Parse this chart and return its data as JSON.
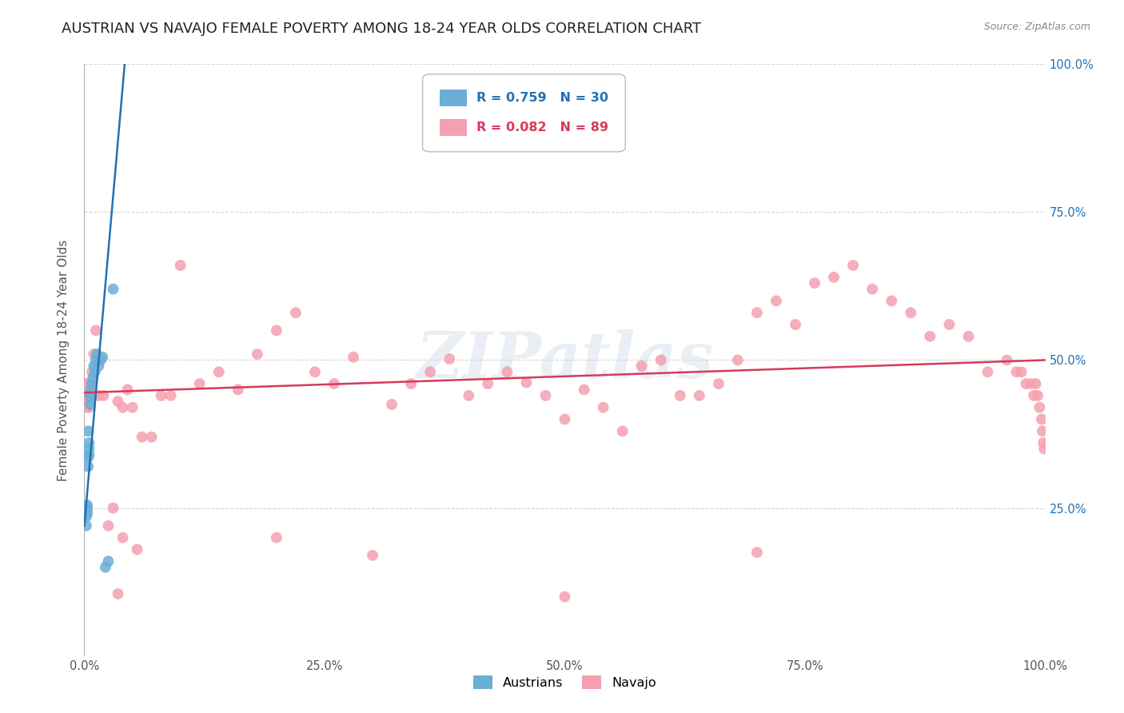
{
  "title": "AUSTRIAN VS NAVAJO FEMALE POVERTY AMONG 18-24 YEAR OLDS CORRELATION CHART",
  "source": "Source: ZipAtlas.com",
  "ylabel": "Female Poverty Among 18-24 Year Olds",
  "xlim": [
    0,
    1
  ],
  "ylim": [
    0,
    1
  ],
  "xtick_vals": [
    0.0,
    0.25,
    0.5,
    0.75,
    1.0
  ],
  "xticklabels": [
    "0.0%",
    "25.0%",
    "50.0%",
    "75.0%",
    "100.0%"
  ],
  "ytick_vals": [
    0.25,
    0.5,
    0.75,
    1.0
  ],
  "yticklabels": [
    "25.0%",
    "50.0%",
    "75.0%",
    "100.0%"
  ],
  "austrians_color": "#6baed6",
  "navajo_color": "#f4a0b0",
  "trendline_austrians_color": "#2171b5",
  "trendline_navajo_color": "#d63a5a",
  "watermark": "ZIPatlas",
  "legend_r_austrians": "R = 0.759",
  "legend_n_austrians": "N = 30",
  "legend_r_navajo": "R = 0.082",
  "legend_n_navajo": "N = 89",
  "background_color": "#ffffff",
  "grid_color": "#cccccc",
  "title_fontsize": 13,
  "axis_label_fontsize": 11,
  "tick_fontsize": 10.5,
  "marker_size": 100,
  "austrians_x": [
    0.001,
    0.002,
    0.002,
    0.002,
    0.003,
    0.003,
    0.003,
    0.003,
    0.004,
    0.004,
    0.004,
    0.005,
    0.005,
    0.005,
    0.006,
    0.006,
    0.007,
    0.007,
    0.008,
    0.009,
    0.01,
    0.011,
    0.012,
    0.013,
    0.015,
    0.017,
    0.019,
    0.022,
    0.025,
    0.03
  ],
  "austrians_y": [
    0.245,
    0.25,
    0.235,
    0.22,
    0.245,
    0.24,
    0.255,
    0.25,
    0.32,
    0.335,
    0.38,
    0.34,
    0.35,
    0.36,
    0.425,
    0.44,
    0.45,
    0.435,
    0.46,
    0.47,
    0.49,
    0.48,
    0.5,
    0.51,
    0.49,
    0.5,
    0.505,
    0.15,
    0.16,
    0.62
  ],
  "navajo_x": [
    0.001,
    0.001,
    0.002,
    0.002,
    0.002,
    0.003,
    0.003,
    0.003,
    0.004,
    0.005,
    0.006,
    0.007,
    0.008,
    0.01,
    0.012,
    0.015,
    0.02,
    0.025,
    0.03,
    0.035,
    0.04,
    0.045,
    0.05,
    0.06,
    0.07,
    0.08,
    0.09,
    0.1,
    0.12,
    0.14,
    0.16,
    0.18,
    0.2,
    0.22,
    0.24,
    0.26,
    0.28,
    0.3,
    0.32,
    0.34,
    0.36,
    0.38,
    0.4,
    0.42,
    0.44,
    0.46,
    0.48,
    0.5,
    0.52,
    0.54,
    0.56,
    0.58,
    0.6,
    0.62,
    0.64,
    0.66,
    0.68,
    0.7,
    0.72,
    0.74,
    0.76,
    0.78,
    0.8,
    0.82,
    0.84,
    0.86,
    0.88,
    0.9,
    0.92,
    0.94,
    0.96,
    0.97,
    0.975,
    0.98,
    0.985,
    0.988,
    0.99,
    0.992,
    0.994,
    0.996,
    0.997,
    0.998,
    0.999,
    0.04,
    0.035,
    0.055,
    0.2,
    0.5,
    0.7
  ],
  "navajo_y": [
    0.455,
    0.44,
    0.43,
    0.45,
    0.46,
    0.42,
    0.45,
    0.44,
    0.46,
    0.42,
    0.46,
    0.44,
    0.48,
    0.51,
    0.55,
    0.44,
    0.44,
    0.22,
    0.25,
    0.43,
    0.42,
    0.45,
    0.42,
    0.37,
    0.37,
    0.44,
    0.44,
    0.66,
    0.46,
    0.48,
    0.45,
    0.51,
    0.55,
    0.58,
    0.48,
    0.46,
    0.505,
    0.17,
    0.425,
    0.46,
    0.48,
    0.502,
    0.44,
    0.46,
    0.48,
    0.462,
    0.44,
    0.4,
    0.45,
    0.42,
    0.38,
    0.49,
    0.5,
    0.44,
    0.44,
    0.46,
    0.5,
    0.58,
    0.6,
    0.56,
    0.63,
    0.64,
    0.66,
    0.62,
    0.6,
    0.58,
    0.54,
    0.56,
    0.54,
    0.48,
    0.5,
    0.48,
    0.48,
    0.46,
    0.46,
    0.44,
    0.46,
    0.44,
    0.42,
    0.4,
    0.38,
    0.36,
    0.35,
    0.2,
    0.105,
    0.18,
    0.2,
    0.1,
    0.175
  ]
}
